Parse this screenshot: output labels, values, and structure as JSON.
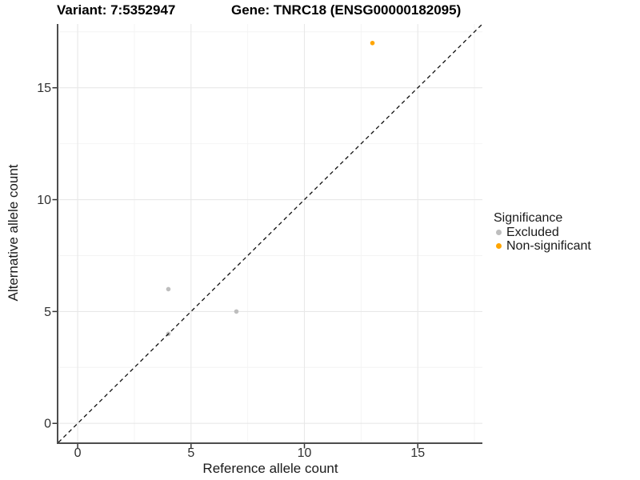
{
  "titles": {
    "variant": "Variant: 7:5352947",
    "gene": "Gene: TNRC18 (ENSG00000182095)"
  },
  "chart_data": {
    "type": "scatter",
    "xlabel": "Reference allele count",
    "ylabel": "Alternative allele count",
    "xlim": [
      -0.85,
      17.85
    ],
    "ylim": [
      -0.85,
      17.85
    ],
    "x_ticks": [
      0,
      5,
      10,
      15
    ],
    "y_ticks": [
      0,
      5,
      10,
      15
    ],
    "minor_ticks": [
      2.5,
      7.5,
      12.5,
      17.5
    ],
    "grid": "major and minor gridlines on white background",
    "identity_line": {
      "slope": 1,
      "intercept": 0,
      "style": "dashed",
      "color": "#111111"
    },
    "series": [
      {
        "name": "Excluded",
        "color": "#BEBEBE",
        "points": [
          [
            4,
            6
          ],
          [
            7,
            5
          ],
          [
            4,
            4
          ]
        ]
      },
      {
        "name": "Non-significant",
        "color": "#FFA500",
        "points": [
          [
            13,
            17
          ]
        ]
      }
    ],
    "legend": {
      "title": "Significance",
      "position": "right"
    }
  },
  "appearance": {
    "grid_major": "#E8E8E8",
    "grid_minor": "#F4F4F4",
    "axis_line": "#4D4D4D",
    "tick_color": "#333333",
    "tick_label_color": "#303030",
    "point_radius": 2.8
  }
}
